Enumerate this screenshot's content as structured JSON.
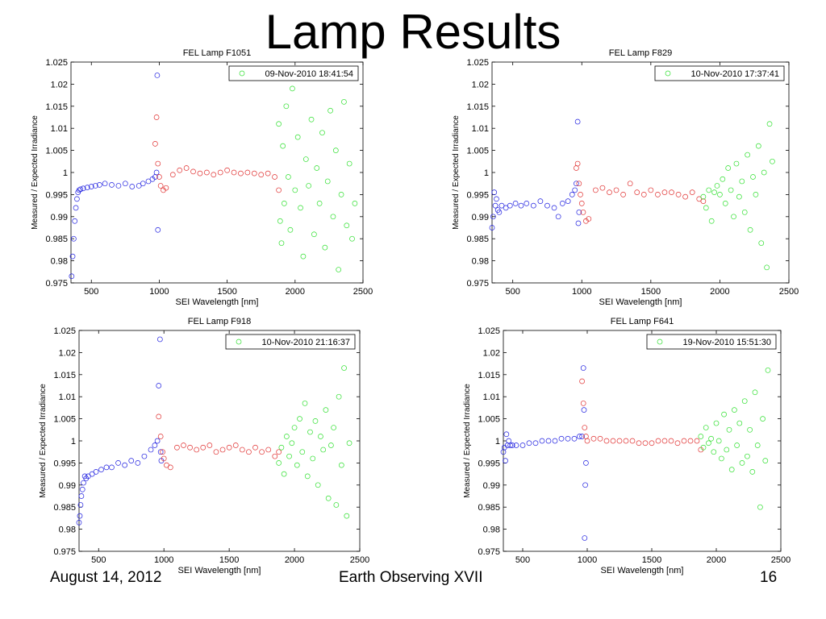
{
  "slide": {
    "title": "Lamp Results",
    "footer_date": "August 14, 2012",
    "footer_conference": "Earth Observing XVII",
    "page_number": "16"
  },
  "series_colors": {
    "blue": "#2020e0",
    "red": "#e03030",
    "green": "#30e030"
  },
  "chart_data": [
    {
      "type": "scatter",
      "title": "FEL Lamp F1051",
      "xlabel": "SEI Wavelength [nm]",
      "ylabel": "Measured / Expected Irradiance",
      "xlim": [
        350,
        2500
      ],
      "ylim": [
        0.975,
        1.025
      ],
      "xticks": [
        500,
        1000,
        1500,
        2000,
        2500
      ],
      "yticks": [
        0.975,
        0.98,
        0.985,
        0.99,
        0.995,
        1,
        1.005,
        1.01,
        1.015,
        1.02,
        1.025
      ],
      "legend": {
        "label": "09-Nov-2010 18:41:54",
        "position": "top-right"
      },
      "series": [
        {
          "color": "blue",
          "x": [
            355,
            362,
            370,
            378,
            386,
            394,
            402,
            410,
            420,
            440,
            470,
            500,
            530,
            560,
            600,
            650,
            700,
            750,
            800,
            850,
            880,
            920,
            950,
            970,
            980,
            985,
            990
          ],
          "y": [
            0.9765,
            0.981,
            0.985,
            0.989,
            0.992,
            0.994,
            0.9955,
            0.996,
            0.9962,
            0.9964,
            0.9966,
            0.9968,
            0.997,
            0.9972,
            0.9975,
            0.9972,
            0.997,
            0.9975,
            0.9968,
            0.997,
            0.9975,
            0.998,
            0.9985,
            0.999,
            1.0,
            1.022,
            0.987
          ]
        },
        {
          "color": "red",
          "x": [
            970,
            980,
            990,
            1000,
            1010,
            1030,
            1050,
            1100,
            1150,
            1200,
            1250,
            1300,
            1350,
            1400,
            1450,
            1500,
            1550,
            1600,
            1650,
            1700,
            1750,
            1800,
            1850,
            1880
          ],
          "y": [
            1.0065,
            1.0125,
            1.002,
            0.999,
            0.997,
            0.996,
            0.9965,
            0.9995,
            1.0005,
            1.001,
            1.0002,
            0.9998,
            1.0,
            0.9995,
            1.0,
            1.0005,
            1.0,
            0.9998,
            1.0,
            0.9998,
            0.9995,
            0.9998,
            0.999,
            0.996
          ]
        },
        {
          "color": "green",
          "x": [
            1880,
            1890,
            1900,
            1910,
            1920,
            1935,
            1950,
            1965,
            1980,
            2000,
            2020,
            2040,
            2060,
            2080,
            2100,
            2120,
            2140,
            2160,
            2180,
            2200,
            2220,
            2240,
            2260,
            2280,
            2300,
            2320,
            2340,
            2360,
            2380,
            2400,
            2420,
            2440
          ],
          "y": [
            1.011,
            0.989,
            0.984,
            1.006,
            0.993,
            1.015,
            0.999,
            0.987,
            1.019,
            0.996,
            1.008,
            0.992,
            0.981,
            1.003,
            0.997,
            1.012,
            0.986,
            1.001,
            0.993,
            1.009,
            0.983,
            0.998,
            1.014,
            0.99,
            1.005,
            0.978,
            0.995,
            1.016,
            0.988,
            1.002,
            0.985,
            0.993
          ]
        }
      ]
    },
    {
      "type": "scatter",
      "title": "FEL Lamp F829",
      "xlabel": "SEI Wavelength [nm]",
      "ylabel": "Measured / Expected Irradiance",
      "xlim": [
        350,
        2500
      ],
      "ylim": [
        0.975,
        1.025
      ],
      "xticks": [
        500,
        1000,
        1500,
        2000,
        2500
      ],
      "yticks": [
        0.975,
        0.98,
        0.985,
        0.99,
        0.995,
        1,
        1.005,
        1.01,
        1.015,
        1.02,
        1.025
      ],
      "legend": {
        "label": "10-Nov-2010 17:37:41",
        "position": "top-right"
      },
      "series": [
        {
          "color": "blue",
          "x": [
            350,
            358,
            366,
            374,
            382,
            392,
            402,
            420,
            450,
            480,
            520,
            560,
            600,
            650,
            700,
            750,
            800,
            830,
            860,
            900,
            930,
            950,
            960,
            970,
            975,
            980
          ],
          "y": [
            0.9875,
            0.99,
            0.9955,
            0.9925,
            0.994,
            0.9915,
            0.991,
            0.9925,
            0.992,
            0.9925,
            0.993,
            0.9925,
            0.993,
            0.9925,
            0.9935,
            0.9925,
            0.992,
            0.99,
            0.993,
            0.9935,
            0.995,
            0.996,
            0.9975,
            1.0115,
            0.9885,
            0.991
          ]
        },
        {
          "color": "red",
          "x": [
            960,
            970,
            980,
            990,
            1000,
            1010,
            1030,
            1050,
            1100,
            1150,
            1200,
            1250,
            1300,
            1350,
            1400,
            1450,
            1500,
            1550,
            1600,
            1650,
            1700,
            1750,
            1800,
            1850,
            1880
          ],
          "y": [
            1.001,
            1.002,
            0.9975,
            0.995,
            0.993,
            0.991,
            0.989,
            0.9895,
            0.996,
            0.9965,
            0.9955,
            0.996,
            0.995,
            0.9975,
            0.9955,
            0.995,
            0.996,
            0.995,
            0.9955,
            0.9955,
            0.995,
            0.9945,
            0.9955,
            0.994,
            0.9935
          ]
        },
        {
          "color": "green",
          "x": [
            1880,
            1900,
            1920,
            1940,
            1960,
            1980,
            2000,
            2020,
            2040,
            2060,
            2080,
            2100,
            2120,
            2140,
            2160,
            2180,
            2200,
            2220,
            2240,
            2260,
            2280,
            2300,
            2320,
            2340,
            2360,
            2380
          ],
          "y": [
            0.9945,
            0.992,
            0.996,
            0.989,
            0.9955,
            0.997,
            0.995,
            0.9985,
            0.993,
            1.001,
            0.996,
            0.99,
            1.002,
            0.9945,
            0.998,
            0.991,
            1.004,
            0.987,
            0.999,
            0.995,
            1.006,
            0.984,
            1.0,
            0.9785,
            1.011,
            1.0025
          ]
        }
      ]
    },
    {
      "type": "scatter",
      "title": "FEL Lamp F918",
      "xlabel": "SEI Wavelength [nm]",
      "ylabel": "Measured / Expected Irradiance",
      "xlim": [
        350,
        2500
      ],
      "ylim": [
        0.975,
        1.025
      ],
      "xticks": [
        500,
        1000,
        1500,
        2000,
        2500
      ],
      "yticks": [
        0.975,
        0.98,
        0.985,
        0.99,
        0.995,
        1,
        1.005,
        1.01,
        1.015,
        1.02,
        1.025
      ],
      "legend": {
        "label": "10-Nov-2010 21:16:37",
        "position": "top-right"
      },
      "series": [
        {
          "color": "blue",
          "x": [
            350,
            356,
            362,
            368,
            376,
            384,
            394,
            404,
            420,
            450,
            480,
            520,
            560,
            600,
            650,
            700,
            750,
            800,
            850,
            900,
            930,
            950,
            960,
            970,
            975,
            980
          ],
          "y": [
            0.9815,
            0.983,
            0.9855,
            0.9875,
            0.989,
            0.9905,
            0.992,
            0.9915,
            0.992,
            0.9925,
            0.993,
            0.9935,
            0.994,
            0.994,
            0.995,
            0.9945,
            0.9955,
            0.995,
            0.9965,
            0.998,
            0.999,
            1.0,
            1.0125,
            1.023,
            0.9975,
            0.9955
          ]
        },
        {
          "color": "red",
          "x": [
            960,
            975,
            990,
            1000,
            1020,
            1050,
            1100,
            1150,
            1200,
            1250,
            1300,
            1350,
            1400,
            1450,
            1500,
            1550,
            1600,
            1650,
            1700,
            1750,
            1800,
            1850,
            1880
          ],
          "y": [
            1.0055,
            1.001,
            0.9975,
            0.996,
            0.9945,
            0.994,
            0.9985,
            0.999,
            0.9985,
            0.998,
            0.9985,
            0.999,
            0.9975,
            0.998,
            0.9985,
            0.999,
            0.998,
            0.9975,
            0.9985,
            0.9975,
            0.998,
            0.9965,
            0.9975
          ]
        },
        {
          "color": "green",
          "x": [
            1880,
            1900,
            1920,
            1940,
            1960,
            1980,
            2000,
            2020,
            2040,
            2060,
            2080,
            2100,
            2120,
            2140,
            2160,
            2180,
            2200,
            2220,
            2240,
            2260,
            2280,
            2300,
            2320,
            2340,
            2360,
            2380,
            2400,
            2420
          ],
          "y": [
            0.995,
            0.9985,
            0.9925,
            1.001,
            0.9965,
            0.9995,
            1.003,
            0.9945,
            1.005,
            0.9975,
            1.0085,
            0.992,
            1.002,
            0.996,
            1.0045,
            0.99,
            1.001,
            0.998,
            1.007,
            0.987,
            0.999,
            1.003,
            0.9855,
            1.01,
            0.9945,
            1.0165,
            0.983,
            0.9995
          ]
        }
      ]
    },
    {
      "type": "scatter",
      "title": "FEL Lamp F641",
      "xlabel": "SEI Wavelength [nm]",
      "ylabel": "Measured / Expected Irradiance",
      "xlim": [
        350,
        2500
      ],
      "ylim": [
        0.975,
        1.025
      ],
      "xticks": [
        500,
        1000,
        1500,
        2000,
        2500
      ],
      "yticks": [
        0.975,
        0.98,
        0.985,
        0.99,
        0.995,
        1,
        1.005,
        1.01,
        1.015,
        1.02,
        1.025
      ],
      "legend": {
        "label": "19-Nov-2010 15:51:30",
        "position": "top-right"
      },
      "series": [
        {
          "color": "blue",
          "x": [
            350,
            358,
            366,
            374,
            382,
            392,
            404,
            420,
            450,
            500,
            550,
            600,
            650,
            700,
            750,
            800,
            850,
            900,
            940,
            960,
            970,
            975,
            980,
            985,
            990
          ],
          "y": [
            0.9975,
            0.9985,
            0.9955,
            1.0015,
            0.999,
            1.0,
            0.999,
            0.999,
            0.999,
            0.999,
            0.9995,
            0.9995,
            1.0,
            1.0,
            1.0,
            1.0005,
            1.0005,
            1.0005,
            1.001,
            1.001,
            1.0165,
            1.007,
            0.978,
            0.99,
            0.995
          ]
        },
        {
          "color": "red",
          "x": [
            960,
            970,
            980,
            990,
            1000,
            1050,
            1100,
            1150,
            1200,
            1250,
            1300,
            1350,
            1400,
            1450,
            1500,
            1550,
            1600,
            1650,
            1700,
            1750,
            1800,
            1850,
            1880
          ],
          "y": [
            1.0135,
            1.0085,
            1.003,
            1.001,
            1.0,
            1.0005,
            1.0005,
            1.0,
            1.0,
            1.0,
            1.0,
            1.0,
            0.9995,
            0.9995,
            0.9995,
            1.0,
            1.0,
            1.0,
            0.9995,
            1.0,
            1.0,
            1.0,
            0.998
          ]
        },
        {
          "color": "green",
          "x": [
            1880,
            1900,
            1920,
            1940,
            1960,
            1980,
            2000,
            2020,
            2040,
            2060,
            2080,
            2100,
            2120,
            2140,
            2160,
            2180,
            2200,
            2220,
            2240,
            2260,
            2280,
            2300,
            2320,
            2340,
            2360,
            2380,
            2400
          ],
          "y": [
            1.001,
            0.9985,
            1.003,
            0.9995,
            1.0005,
            0.9975,
            1.004,
            1.0,
            0.996,
            1.006,
            0.998,
            1.0025,
            0.9935,
            1.007,
            0.999,
            1.004,
            0.995,
            1.009,
            0.9965,
            1.0025,
            0.993,
            1.011,
            0.999,
            0.985,
            1.005,
            0.9955,
            1.016
          ]
        }
      ]
    }
  ]
}
